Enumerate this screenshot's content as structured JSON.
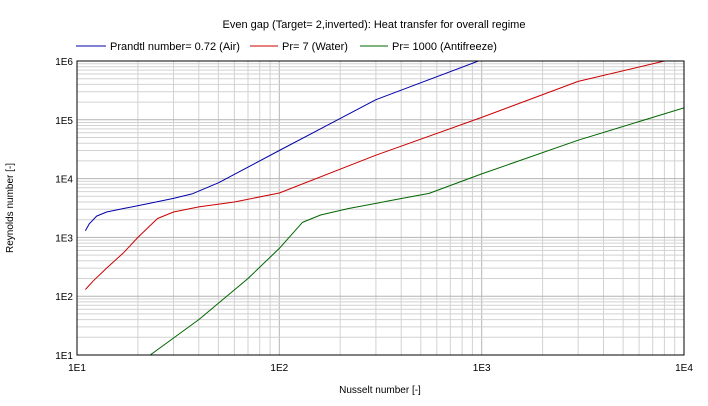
{
  "chart_data": {
    "type": "line",
    "title": "Even gap (Target= 2,inverted): Heat transfer for overall regime",
    "xlabel": "Nusselt number [-]",
    "ylabel": "Reynolds number [-]",
    "xscale": "log",
    "yscale": "log",
    "xlim": [
      10,
      10000
    ],
    "ylim": [
      10,
      1000000
    ],
    "x_ticks": [
      "1E1",
      "1E2",
      "1E3",
      "1E4"
    ],
    "y_ticks": [
      "1E1",
      "1E2",
      "1E3",
      "1E4",
      "1E5",
      "1E6"
    ],
    "grid": true,
    "legend": "top",
    "series": [
      {
        "name": "Prandtl number= 0.72 (Air)",
        "color": "#0000aa",
        "x": [
          11,
          11.5,
          12.5,
          14,
          17,
          22,
          30,
          37,
          50,
          100,
          300,
          1000,
          2000
        ],
        "y": [
          1300,
          1700,
          2300,
          2700,
          3100,
          3700,
          4600,
          5500,
          8500,
          30000,
          220000,
          1050000,
          1000000
        ]
      },
      {
        "name": "Pr= 7 (Water)",
        "color": "#cc0000",
        "x": [
          11,
          12,
          14,
          17,
          20,
          25,
          30,
          40,
          60,
          100,
          300,
          1000,
          3000,
          8000
        ],
        "y": [
          130,
          180,
          300,
          550,
          1000,
          2100,
          2700,
          3300,
          4000,
          5700,
          25000,
          110000,
          450000,
          1000000
        ]
      },
      {
        "name": "Pr= 1000 (Antifreeze)",
        "color": "#006600",
        "x": [
          23,
          40,
          70,
          100,
          130,
          160,
          220,
          350,
          550,
          1000,
          3000,
          10000
        ],
        "y": [
          10,
          40,
          200,
          650,
          1800,
          2400,
          3100,
          4200,
          5600,
          12000,
          45000,
          160000
        ]
      }
    ]
  }
}
